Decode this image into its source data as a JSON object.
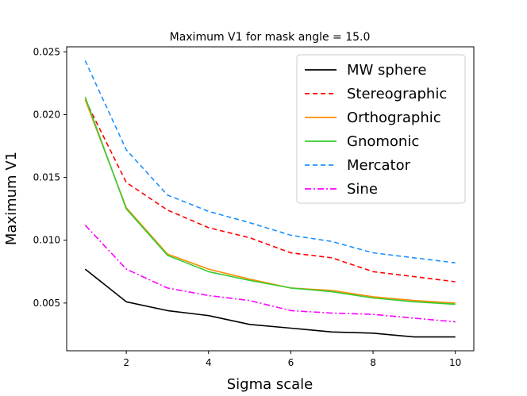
{
  "chart_data": {
    "type": "line",
    "title": "Maximum V1 for mask angle = 15.0",
    "xlabel": "Sigma scale",
    "ylabel": "Maximum V1",
    "xlim": [
      0.55,
      10.45
    ],
    "ylim": [
      0.0012,
      0.0254
    ],
    "xticks": [
      2,
      4,
      6,
      8,
      10
    ],
    "xtick_labels": [
      "2",
      "4",
      "6",
      "8",
      "10"
    ],
    "yticks": [
      0.005,
      0.01,
      0.015,
      0.02,
      0.025
    ],
    "ytick_labels": [
      "0.005",
      "0.010",
      "0.015",
      "0.020",
      "0.025"
    ],
    "grid": false,
    "legend_position": "top-right",
    "x": [
      1,
      2,
      3,
      4,
      5,
      6,
      7,
      8,
      9,
      10
    ],
    "series": [
      {
        "name": "MW sphere",
        "color": "#000000",
        "dash": "solid",
        "values": [
          0.0077,
          0.0051,
          0.0044,
          0.004,
          0.0033,
          0.003,
          0.0027,
          0.0026,
          0.0023,
          0.0023
        ]
      },
      {
        "name": "Stereographic",
        "color": "#ff0000",
        "dash": "dashed",
        "values": [
          0.0212,
          0.0146,
          0.0124,
          0.011,
          0.0102,
          0.009,
          0.0086,
          0.0075,
          0.0071,
          0.0067
        ]
      },
      {
        "name": "Orthographic",
        "color": "#ff8c00",
        "dash": "solid",
        "values": [
          0.0212,
          0.0126,
          0.0089,
          0.0077,
          0.0069,
          0.0062,
          0.006,
          0.0055,
          0.0052,
          0.005
        ]
      },
      {
        "name": "Gnomonic",
        "color": "#33cc33",
        "dash": "solid",
        "values": [
          0.0214,
          0.0125,
          0.0088,
          0.0075,
          0.0068,
          0.0062,
          0.0059,
          0.0054,
          0.0051,
          0.0049
        ]
      },
      {
        "name": "Mercator",
        "color": "#1e90ff",
        "dash": "dashed",
        "values": [
          0.0243,
          0.0172,
          0.0136,
          0.0123,
          0.0114,
          0.0104,
          0.0099,
          0.009,
          0.0086,
          0.0082
        ]
      },
      {
        "name": "Sine",
        "color": "#ff00ff",
        "dash": "dashdot",
        "values": [
          0.0112,
          0.0077,
          0.0062,
          0.0056,
          0.0052,
          0.0044,
          0.0042,
          0.0041,
          0.0038,
          0.0035
        ]
      }
    ]
  }
}
